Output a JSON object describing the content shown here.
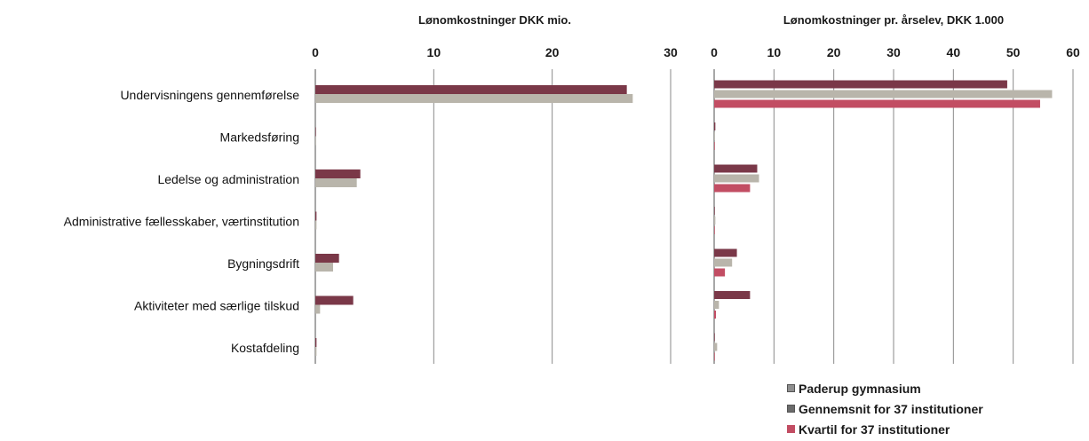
{
  "chart_data": [
    {
      "type": "bar",
      "title": "Lønomkostninger DKK mio.",
      "categories": [
        "Undervisningens gennemførelse",
        "Markedsføring",
        "Ledelse og administration",
        "Administrative fællesskaber, værtinstitution",
        "Bygningsdrift",
        "Aktiviteter med særlige tilskud",
        "Kostafdeling"
      ],
      "series": [
        {
          "name": "Paderup gymnasium",
          "values": [
            26.3,
            0,
            3.8,
            0.1,
            2.0,
            3.2,
            0.1
          ]
        },
        {
          "name": "Gennemsnit for 37 institutioner",
          "values": [
            26.8,
            0,
            3.5,
            0.1,
            1.5,
            0.4,
            0.1
          ]
        }
      ],
      "xlim": [
        0,
        30
      ],
      "xticks": [
        "0",
        "10",
        "20",
        "30"
      ]
    },
    {
      "type": "bar",
      "title": "Lønomkostninger pr. årselev, DKK 1.000",
      "categories": [
        "Undervisningens gennemførelse",
        "Markedsføring",
        "Ledelse og administration",
        "Administrative fællesskaber, værtinstitution",
        "Bygningsdrift",
        "Aktiviteter med særlige tilskud",
        "Kostafdeling"
      ],
      "series": [
        {
          "name": "Paderup gymnasium",
          "values": [
            49,
            0.2,
            7.2,
            0.1,
            3.8,
            6.0,
            0.1
          ]
        },
        {
          "name": "Gennemsnit for 37 institutioner",
          "values": [
            56.5,
            0.1,
            7.5,
            0.2,
            3.0,
            0.8,
            0.5
          ]
        },
        {
          "name": "Kvartil for 37 institutioner",
          "values": [
            54.5,
            0.1,
            6.0,
            0.1,
            1.8,
            0.3,
            0.1
          ]
        }
      ],
      "xlim": [
        0,
        60
      ],
      "xticks": [
        "0",
        "10",
        "20",
        "30",
        "40",
        "50",
        "60"
      ]
    }
  ],
  "legend": [
    {
      "name": "Paderup gymnasium",
      "color": "#8e8e8e"
    },
    {
      "name": "Gennemsnit for 37 institutioner",
      "color": "#6b6b6b"
    },
    {
      "name": "Kvartil for 37 institutioner",
      "color": "#c24d63"
    }
  ],
  "colors": {
    "paderup": "#7a3848",
    "gennemsnit": "#b9b5ab",
    "kvartil": "#c24d63",
    "gridline": "#8a8a8a"
  }
}
